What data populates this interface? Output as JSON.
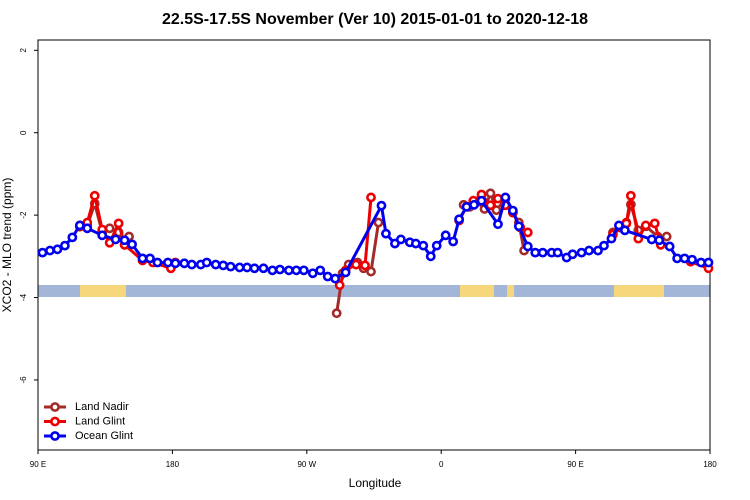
{
  "chart_data": {
    "type": "line",
    "title": "22.5S-17.5S November (Ver 10)   2015-01-01 to 2020-12-18",
    "x_label": "Longitude",
    "y_label": "XCO2 - MLO trend (ppm)",
    "xlim": [
      90,
      540
    ],
    "xticks": [
      {
        "value": 90,
        "label": "90 E"
      },
      {
        "value": 180,
        "label": "180"
      },
      {
        "value": 270,
        "label": "90 W"
      },
      {
        "value": 360,
        "label": "0"
      },
      {
        "value": 450,
        "label": "90 E"
      },
      {
        "value": 540,
        "label": "180"
      }
    ],
    "ylim": [
      -7.7,
      2.25
    ],
    "yticks": [
      2,
      0,
      -2,
      -4,
      -6
    ],
    "legend": "bottom-left",
    "series": [
      {
        "name": "Land Nadir",
        "color": "#a52a2a",
        "x": [
          118,
          123,
          128,
          133,
          138,
          144,
          148,
          151,
          null,
          290,
          294,
          298,
          304,
          308,
          313,
          318,
          null,
          375,
          379,
          384,
          389,
          393,
          397,
          403,
          408,
          412,
          415.5,
          null,
          475,
          480,
          484,
          487,
          492,
          497,
          505,
          511
        ],
        "values": [
          -2.25,
          -2.25,
          -1.72,
          -2.42,
          -2.32,
          -2.42,
          -2.72,
          -2.52,
          null,
          -4.38,
          -3.41,
          -3.2,
          -3.15,
          -3.29,
          -3.37,
          -2.18,
          null,
          -1.75,
          -1.8,
          -1.68,
          -1.85,
          -1.47,
          -1.88,
          -1.6,
          -1.94,
          -2.18,
          -2.86,
          null,
          -2.42,
          -2.3,
          -2.18,
          -1.74,
          -2.37,
          -2.27,
          -2.52,
          -2.52
        ]
      },
      {
        "name": "Land Glint",
        "color": "#ee0000",
        "x": [
          118,
          123,
          128,
          133,
          138,
          144,
          148,
          160,
          167,
          179,
          182,
          null,
          292,
          296,
          303,
          309,
          313,
          null,
          372,
          377,
          381.5,
          387,
          393,
          398,
          403,
          408,
          413,
          418,
          null,
          475,
          480,
          484,
          487,
          492,
          497,
          503,
          507,
          null,
          527,
          539
        ],
        "values": [
          -2.28,
          -2.18,
          -1.53,
          -2.35,
          -2.67,
          -2.2,
          -2.72,
          -3.1,
          -3.15,
          -3.29,
          -3.15,
          null,
          -3.7,
          -3.34,
          -3.2,
          -3.22,
          -1.57,
          null,
          -2.13,
          -1.79,
          -1.65,
          -1.5,
          -1.76,
          -1.6,
          -1.76,
          -1.94,
          -2.3,
          -2.42,
          null,
          -2.47,
          -2.3,
          -2.2,
          -1.53,
          -2.57,
          -2.25,
          -2.2,
          -2.72,
          null,
          -3.13,
          -3.29
        ]
      },
      {
        "name": "Ocean Glint",
        "color": "#0000ee",
        "x": [
          93,
          98,
          103,
          108,
          113,
          118,
          123,
          133,
          142,
          148,
          153,
          160,
          165,
          170,
          177,
          182,
          188,
          193,
          199,
          203,
          209,
          214,
          219,
          225,
          230,
          235,
          241,
          247,
          252,
          258,
          263,
          268,
          274,
          279,
          284,
          289,
          296,
          320,
          323,
          329,
          333,
          339,
          343,
          348,
          353,
          357,
          363,
          368,
          372,
          377,
          382,
          387,
          398,
          403,
          408,
          412,
          418,
          423,
          428,
          434,
          438,
          444,
          448,
          454,
          459,
          465,
          469,
          474,
          479,
          483,
          501,
          506,
          513,
          518,
          523,
          528,
          534,
          539
        ],
        "values": [
          -2.91,
          -2.86,
          -2.83,
          -2.74,
          -2.54,
          -2.25,
          -2.32,
          -2.49,
          -2.59,
          -2.61,
          -2.71,
          -3.05,
          -3.05,
          -3.15,
          -3.15,
          -3.17,
          -3.17,
          -3.2,
          -3.2,
          -3.15,
          -3.2,
          -3.22,
          -3.25,
          -3.27,
          -3.27,
          -3.29,
          -3.29,
          -3.34,
          -3.32,
          -3.34,
          -3.34,
          -3.34,
          -3.41,
          -3.34,
          -3.49,
          -3.54,
          -3.39,
          -1.77,
          -2.45,
          -2.69,
          -2.59,
          -2.66,
          -2.69,
          -2.74,
          -3.0,
          -2.74,
          -2.49,
          -2.64,
          -2.1,
          -1.8,
          -1.75,
          -1.65,
          -2.22,
          -1.57,
          -1.89,
          -2.27,
          -2.76,
          -2.91,
          -2.91,
          -2.91,
          -2.91,
          -3.03,
          -2.95,
          -2.91,
          -2.86,
          -2.86,
          -2.74,
          -2.57,
          -2.25,
          -2.37,
          -2.59,
          -2.61,
          -2.76,
          -3.05,
          -3.05,
          -3.08,
          -3.15,
          -3.15
        ]
      }
    ]
  }
}
